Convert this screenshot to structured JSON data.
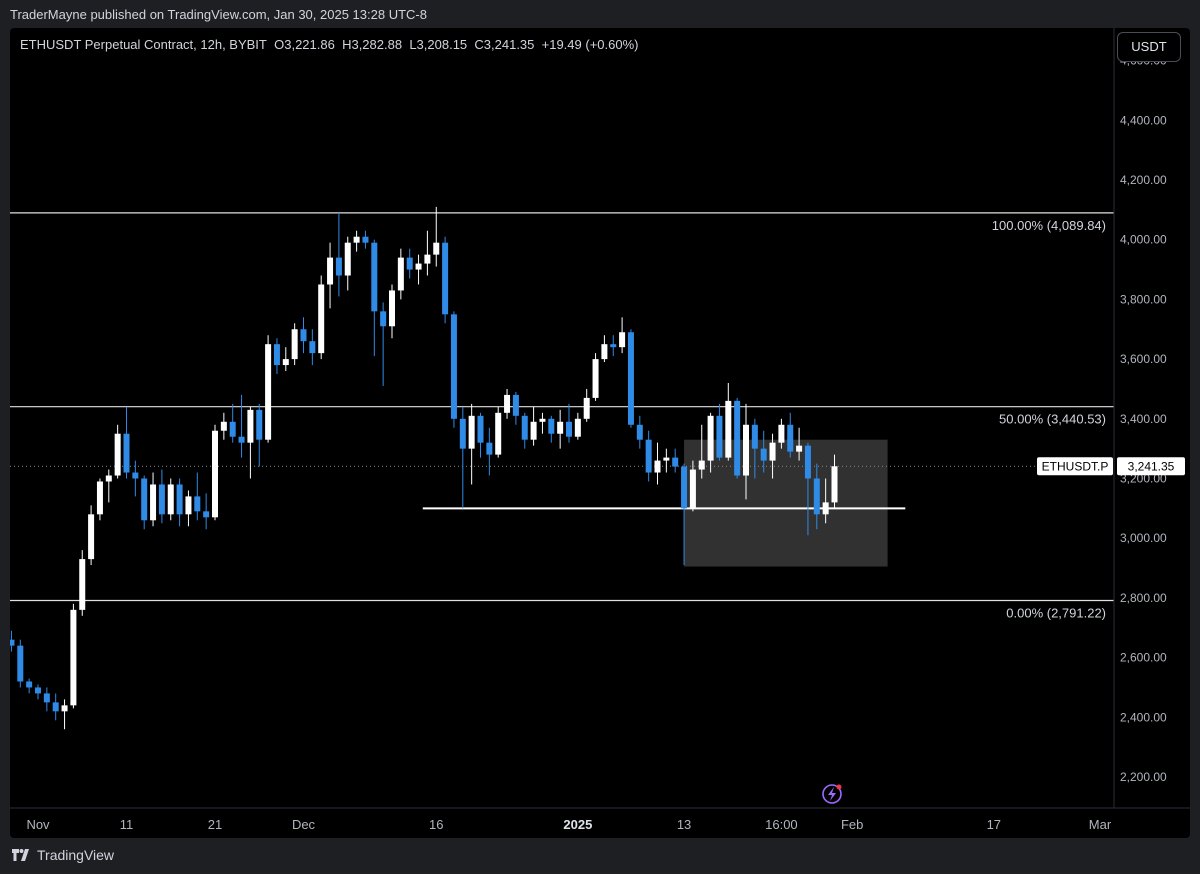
{
  "header": {
    "published": "TraderMayne published on TradingView.com, Jan 30, 2025 13:28 UTC-8"
  },
  "legend": {
    "symbol": "ETHUSDT Perpetual Contract, 12h, BYBIT",
    "open_label": "O",
    "open": "3,221.86",
    "high_label": "H",
    "high": "3,282.88",
    "low_label": "L",
    "low": "3,208.15",
    "close_label": "C",
    "close": "3,241.35",
    "change": "+19.49 (+0.60%)"
  },
  "currency_button": "USDT",
  "footer": {
    "brand": "TradingView"
  },
  "colors": {
    "up": "#ffffff",
    "down": "#2f8be6",
    "background": "#000000",
    "level_line": "#e0e0e0",
    "box_fill": "#3a3a3a"
  },
  "chart_data": {
    "type": "candlestick",
    "symbol": "ETHUSDT.P",
    "last_price": "3,241.35",
    "y_axis": {
      "ylim": [
        2100,
        4600
      ],
      "ticks": [
        2200,
        2400,
        2600,
        2800,
        3000,
        3200,
        3400,
        3600,
        3800,
        4000,
        4200,
        4400,
        4600
      ],
      "tick_labels": [
        "2,200.00",
        "2,400.00",
        "2,600.00",
        "2,800.00",
        "3,000.00",
        "3,200.00",
        "3,400.00",
        "3,600.00",
        "3,800.00",
        "4,000.00",
        "4,200.00",
        "4,400.00",
        "4,600.00"
      ]
    },
    "x_axis": {
      "tick_labels": [
        "Nov",
        "11",
        "21",
        "Dec",
        "16",
        "2025",
        "13",
        "16:00",
        "Feb",
        "17",
        "Mar"
      ],
      "tick_dates": [
        "2024-11-01",
        "2024-11-11",
        "2024-11-21",
        "2024-12-01",
        "2024-12-16",
        "2025-01-01",
        "2025-01-13",
        "2025-01-24",
        "2025-02-01",
        "2025-02-17",
        "2025-03-01"
      ],
      "bold": [
        "2025"
      ]
    },
    "fib_levels": [
      {
        "label": "100.00% (4,089.84)",
        "price": 4089.84
      },
      {
        "label": "50.00% (3,440.53)",
        "price": 3440.53
      },
      {
        "label": "0.00% (2,791.22)",
        "price": 2791.22
      }
    ],
    "support_line": {
      "price": 3100,
      "from": "2024-12-19",
      "to": "2025-02-07"
    },
    "range_box": {
      "from": "2025-01-13",
      "to": "2025-02-05",
      "top": 3330,
      "bottom": 2905
    },
    "candles": [
      {
        "t": "2024-10-28",
        "o": 2640,
        "h": 2700,
        "l": 2600,
        "c": 2660
      },
      {
        "t": "2024-10-29",
        "o": 2660,
        "h": 2690,
        "l": 2620,
        "c": 2640
      },
      {
        "t": "2024-10-30",
        "o": 2640,
        "h": 2660,
        "l": 2500,
        "c": 2520
      },
      {
        "t": "2024-10-31",
        "o": 2520,
        "h": 2530,
        "l": 2480,
        "c": 2500
      },
      {
        "t": "2024-11-01",
        "o": 2500,
        "h": 2510,
        "l": 2460,
        "c": 2480
      },
      {
        "t": "2024-11-02",
        "o": 2480,
        "h": 2500,
        "l": 2420,
        "c": 2450
      },
      {
        "t": "2024-11-03",
        "o": 2450,
        "h": 2480,
        "l": 2390,
        "c": 2420
      },
      {
        "t": "2024-11-04",
        "o": 2420,
        "h": 2460,
        "l": 2360,
        "c": 2440
      },
      {
        "t": "2024-11-05",
        "o": 2440,
        "h": 2780,
        "l": 2430,
        "c": 2760
      },
      {
        "t": "2024-11-06",
        "o": 2760,
        "h": 2960,
        "l": 2740,
        "c": 2930
      },
      {
        "t": "2024-11-07",
        "o": 2930,
        "h": 3110,
        "l": 2910,
        "c": 3080
      },
      {
        "t": "2024-11-08",
        "o": 3080,
        "h": 3200,
        "l": 3060,
        "c": 3190
      },
      {
        "t": "2024-11-09",
        "o": 3190,
        "h": 3230,
        "l": 3120,
        "c": 3210
      },
      {
        "t": "2024-11-10",
        "o": 3210,
        "h": 3380,
        "l": 3200,
        "c": 3350
      },
      {
        "t": "2024-11-11",
        "o": 3350,
        "h": 3440,
        "l": 3200,
        "c": 3220
      },
      {
        "t": "2024-11-12",
        "o": 3220,
        "h": 3260,
        "l": 3140,
        "c": 3200
      },
      {
        "t": "2024-11-13",
        "o": 3200,
        "h": 3210,
        "l": 3030,
        "c": 3060
      },
      {
        "t": "2024-11-14",
        "o": 3060,
        "h": 3220,
        "l": 3040,
        "c": 3180
      },
      {
        "t": "2024-11-15",
        "o": 3180,
        "h": 3230,
        "l": 3050,
        "c": 3080
      },
      {
        "t": "2024-11-16",
        "o": 3080,
        "h": 3200,
        "l": 3060,
        "c": 3180
      },
      {
        "t": "2024-11-17",
        "o": 3180,
        "h": 3200,
        "l": 3040,
        "c": 3080
      },
      {
        "t": "2024-11-18",
        "o": 3080,
        "h": 3160,
        "l": 3040,
        "c": 3140
      },
      {
        "t": "2024-11-19",
        "o": 3140,
        "h": 3220,
        "l": 3060,
        "c": 3090
      },
      {
        "t": "2024-11-20",
        "o": 3090,
        "h": 3150,
        "l": 3030,
        "c": 3070
      },
      {
        "t": "2024-11-21",
        "o": 3070,
        "h": 3380,
        "l": 3060,
        "c": 3360
      },
      {
        "t": "2024-11-22",
        "o": 3360,
        "h": 3420,
        "l": 3330,
        "c": 3390
      },
      {
        "t": "2024-11-23",
        "o": 3390,
        "h": 3450,
        "l": 3320,
        "c": 3340
      },
      {
        "t": "2024-11-24",
        "o": 3340,
        "h": 3480,
        "l": 3270,
        "c": 3320
      },
      {
        "t": "2024-11-25",
        "o": 3320,
        "h": 3440,
        "l": 3200,
        "c": 3430
      },
      {
        "t": "2024-11-26",
        "o": 3430,
        "h": 3450,
        "l": 3240,
        "c": 3330
      },
      {
        "t": "2024-11-27",
        "o": 3330,
        "h": 3680,
        "l": 3320,
        "c": 3650
      },
      {
        "t": "2024-11-28",
        "o": 3650,
        "h": 3670,
        "l": 3550,
        "c": 3580
      },
      {
        "t": "2024-11-29",
        "o": 3580,
        "h": 3640,
        "l": 3560,
        "c": 3600
      },
      {
        "t": "2024-11-30",
        "o": 3600,
        "h": 3720,
        "l": 3580,
        "c": 3700
      },
      {
        "t": "2024-12-01",
        "o": 3700,
        "h": 3740,
        "l": 3620,
        "c": 3660
      },
      {
        "t": "2024-12-02",
        "o": 3660,
        "h": 3700,
        "l": 3580,
        "c": 3620
      },
      {
        "t": "2024-12-03",
        "o": 3620,
        "h": 3880,
        "l": 3600,
        "c": 3850
      },
      {
        "t": "2024-12-04",
        "o": 3850,
        "h": 3990,
        "l": 3770,
        "c": 3940
      },
      {
        "t": "2024-12-05",
        "o": 3940,
        "h": 4090,
        "l": 3810,
        "c": 3880
      },
      {
        "t": "2024-12-06",
        "o": 3880,
        "h": 4010,
        "l": 3830,
        "c": 3990
      },
      {
        "t": "2024-12-07",
        "o": 3990,
        "h": 4030,
        "l": 3960,
        "c": 4010
      },
      {
        "t": "2024-12-08",
        "o": 4010,
        "h": 4030,
        "l": 3970,
        "c": 3990
      },
      {
        "t": "2024-12-09",
        "o": 3990,
        "h": 4000,
        "l": 3610,
        "c": 3760
      },
      {
        "t": "2024-12-10",
        "o": 3760,
        "h": 3790,
        "l": 3510,
        "c": 3710
      },
      {
        "t": "2024-12-11",
        "o": 3710,
        "h": 3850,
        "l": 3670,
        "c": 3830
      },
      {
        "t": "2024-12-12",
        "o": 3830,
        "h": 3970,
        "l": 3800,
        "c": 3940
      },
      {
        "t": "2024-12-13",
        "o": 3940,
        "h": 3970,
        "l": 3870,
        "c": 3900
      },
      {
        "t": "2024-12-14",
        "o": 3900,
        "h": 3950,
        "l": 3850,
        "c": 3920
      },
      {
        "t": "2024-12-15",
        "o": 3920,
        "h": 4030,
        "l": 3880,
        "c": 3950
      },
      {
        "t": "2024-12-16",
        "o": 3950,
        "h": 4110,
        "l": 3910,
        "c": 3990
      },
      {
        "t": "2024-12-17",
        "o": 3990,
        "h": 4010,
        "l": 3720,
        "c": 3750
      },
      {
        "t": "2024-12-18",
        "o": 3750,
        "h": 3760,
        "l": 3370,
        "c": 3400
      },
      {
        "t": "2024-12-19",
        "o": 3400,
        "h": 3440,
        "l": 3100,
        "c": 3300
      },
      {
        "t": "2024-12-20",
        "o": 3300,
        "h": 3450,
        "l": 3180,
        "c": 3410
      },
      {
        "t": "2024-12-21",
        "o": 3410,
        "h": 3420,
        "l": 3270,
        "c": 3320
      },
      {
        "t": "2024-12-22",
        "o": 3320,
        "h": 3370,
        "l": 3210,
        "c": 3280
      },
      {
        "t": "2024-12-23",
        "o": 3280,
        "h": 3440,
        "l": 3270,
        "c": 3420
      },
      {
        "t": "2024-12-24",
        "o": 3420,
        "h": 3500,
        "l": 3400,
        "c": 3480
      },
      {
        "t": "2024-12-25",
        "o": 3480,
        "h": 3490,
        "l": 3380,
        "c": 3410
      },
      {
        "t": "2024-12-26",
        "o": 3410,
        "h": 3420,
        "l": 3300,
        "c": 3330
      },
      {
        "t": "2024-12-27",
        "o": 3330,
        "h": 3440,
        "l": 3310,
        "c": 3390
      },
      {
        "t": "2024-12-28",
        "o": 3390,
        "h": 3420,
        "l": 3350,
        "c": 3400
      },
      {
        "t": "2024-12-29",
        "o": 3400,
        "h": 3410,
        "l": 3320,
        "c": 3350
      },
      {
        "t": "2024-12-30",
        "o": 3350,
        "h": 3430,
        "l": 3300,
        "c": 3390
      },
      {
        "t": "2024-12-31",
        "o": 3390,
        "h": 3450,
        "l": 3320,
        "c": 3340
      },
      {
        "t": "2025-01-01",
        "o": 3340,
        "h": 3420,
        "l": 3330,
        "c": 3400
      },
      {
        "t": "2025-01-02",
        "o": 3400,
        "h": 3500,
        "l": 3390,
        "c": 3470
      },
      {
        "t": "2025-01-03",
        "o": 3470,
        "h": 3620,
        "l": 3460,
        "c": 3600
      },
      {
        "t": "2025-01-04",
        "o": 3600,
        "h": 3680,
        "l": 3590,
        "c": 3650
      },
      {
        "t": "2025-01-05",
        "o": 3650,
        "h": 3680,
        "l": 3610,
        "c": 3640
      },
      {
        "t": "2025-01-06",
        "o": 3640,
        "h": 3740,
        "l": 3620,
        "c": 3690
      },
      {
        "t": "2025-01-07",
        "o": 3690,
        "h": 3700,
        "l": 3370,
        "c": 3380
      },
      {
        "t": "2025-01-08",
        "o": 3380,
        "h": 3410,
        "l": 3300,
        "c": 3330
      },
      {
        "t": "2025-01-09",
        "o": 3330,
        "h": 3360,
        "l": 3190,
        "c": 3220
      },
      {
        "t": "2025-01-10",
        "o": 3220,
        "h": 3320,
        "l": 3180,
        "c": 3260
      },
      {
        "t": "2025-01-11",
        "o": 3260,
        "h": 3300,
        "l": 3220,
        "c": 3270
      },
      {
        "t": "2025-01-12",
        "o": 3270,
        "h": 3300,
        "l": 3220,
        "c": 3240
      },
      {
        "t": "2025-01-13",
        "o": 3240,
        "h": 3250,
        "l": 2910,
        "c": 3100
      },
      {
        "t": "2025-01-14",
        "o": 3100,
        "h": 3260,
        "l": 3090,
        "c": 3230
      },
      {
        "t": "2025-01-15",
        "o": 3230,
        "h": 3380,
        "l": 3200,
        "c": 3260
      },
      {
        "t": "2025-01-16",
        "o": 3260,
        "h": 3420,
        "l": 3220,
        "c": 3410
      },
      {
        "t": "2025-01-17",
        "o": 3410,
        "h": 3450,
        "l": 3260,
        "c": 3270
      },
      {
        "t": "2025-01-18",
        "o": 3270,
        "h": 3520,
        "l": 3260,
        "c": 3460
      },
      {
        "t": "2025-01-19",
        "o": 3460,
        "h": 3470,
        "l": 3200,
        "c": 3210
      },
      {
        "t": "2025-01-20",
        "o": 3210,
        "h": 3450,
        "l": 3130,
        "c": 3380
      },
      {
        "t": "2025-01-21",
        "o": 3380,
        "h": 3400,
        "l": 3200,
        "c": 3300
      },
      {
        "t": "2025-01-22",
        "o": 3300,
        "h": 3360,
        "l": 3220,
        "c": 3260
      },
      {
        "t": "2025-01-23",
        "o": 3260,
        "h": 3350,
        "l": 3200,
        "c": 3320
      },
      {
        "t": "2025-01-24",
        "o": 3320,
        "h": 3400,
        "l": 3300,
        "c": 3380
      },
      {
        "t": "2025-01-25",
        "o": 3380,
        "h": 3420,
        "l": 3270,
        "c": 3290
      },
      {
        "t": "2025-01-26",
        "o": 3290,
        "h": 3370,
        "l": 3260,
        "c": 3310
      },
      {
        "t": "2025-01-27",
        "o": 3310,
        "h": 3320,
        "l": 3010,
        "c": 3200
      },
      {
        "t": "2025-01-28",
        "o": 3200,
        "h": 3250,
        "l": 3030,
        "c": 3080
      },
      {
        "t": "2025-01-29",
        "o": 3080,
        "h": 3200,
        "l": 3050,
        "c": 3120
      },
      {
        "t": "2025-01-30",
        "o": 3120,
        "h": 3280,
        "l": 3100,
        "c": 3241
      }
    ]
  }
}
